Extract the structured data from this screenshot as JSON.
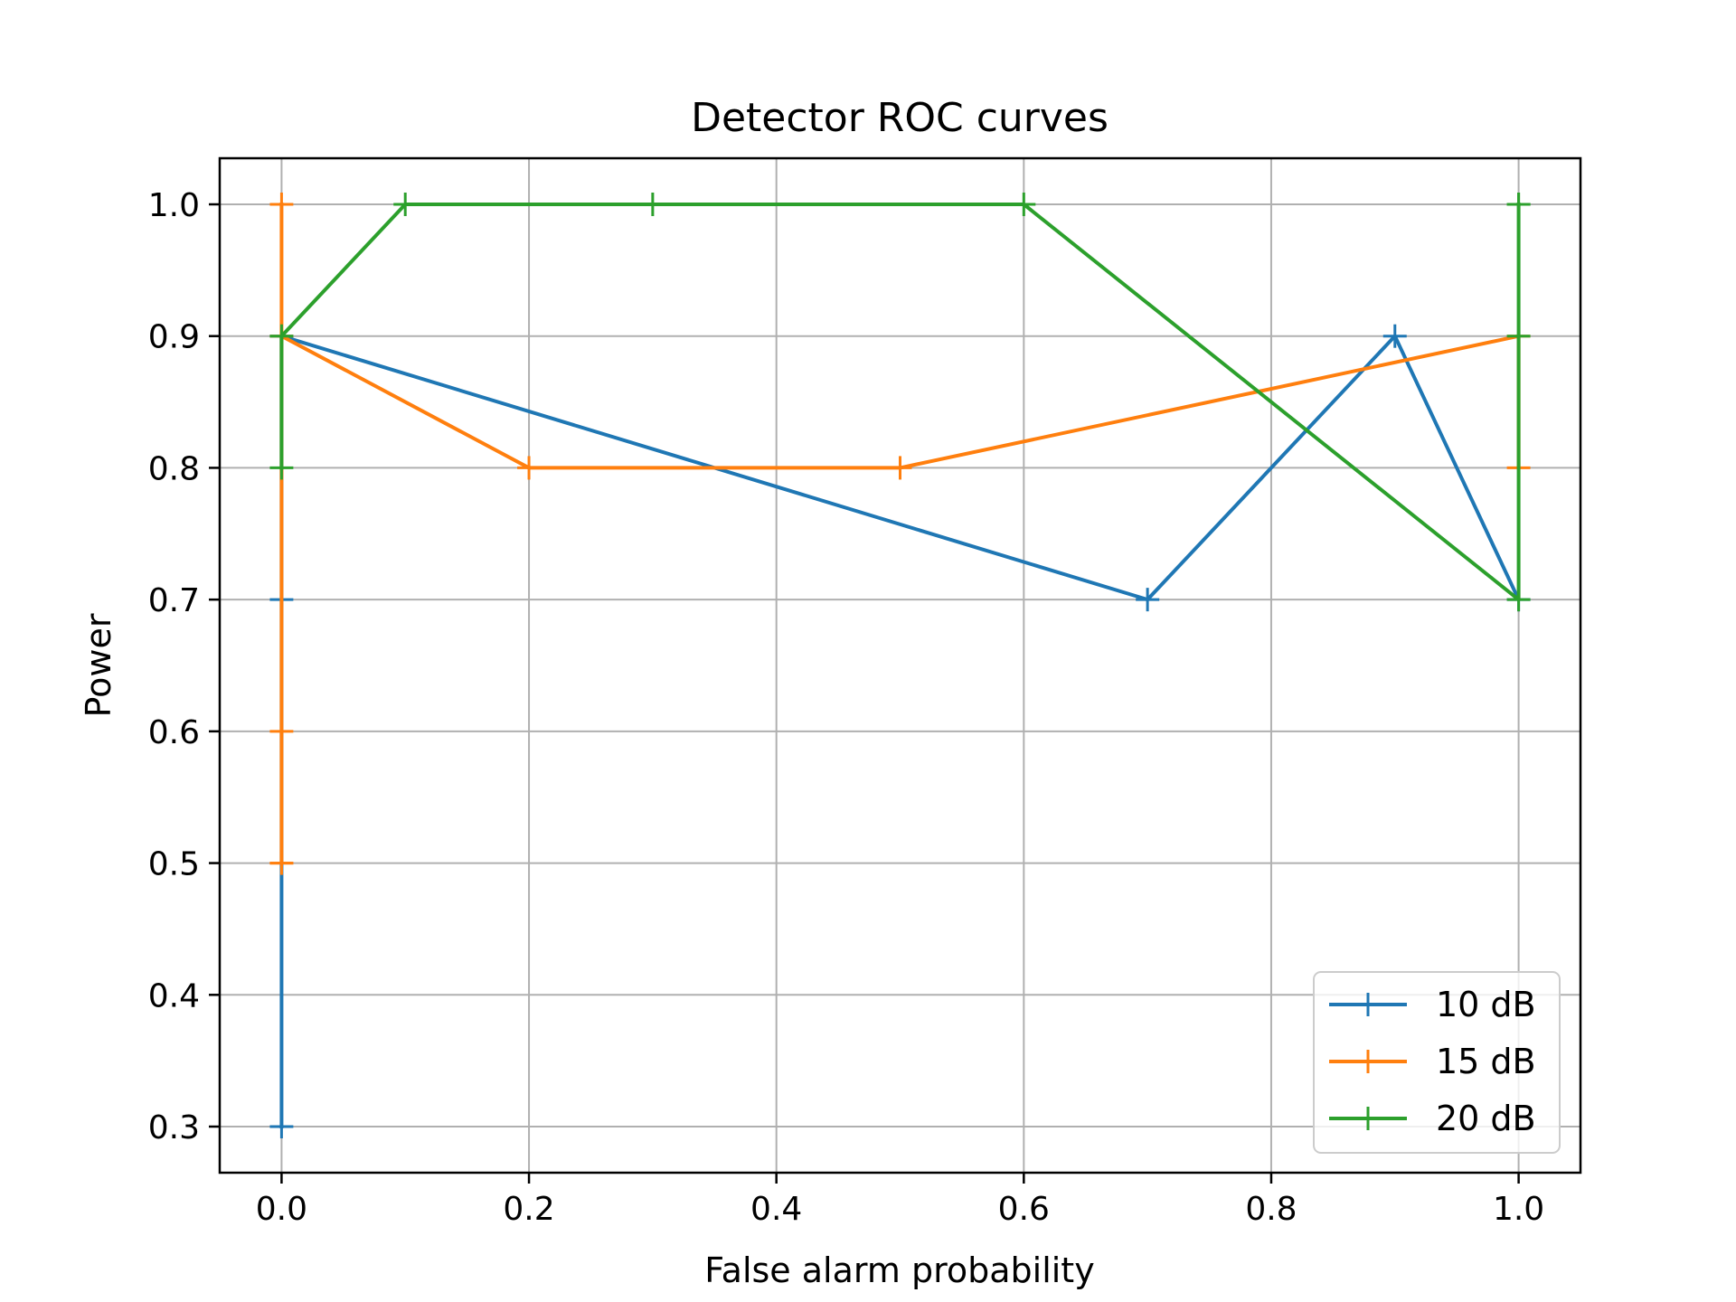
{
  "chart_data": {
    "type": "line",
    "title": "Detector ROC curves",
    "xlabel": "False alarm probability",
    "ylabel": "Power",
    "xlim": [
      -0.05,
      1.05
    ],
    "ylim": [
      0.265,
      1.035
    ],
    "xticks": [
      0.0,
      0.2,
      0.4,
      0.6,
      0.8,
      1.0
    ],
    "xtick_labels": [
      "0.0",
      "0.2",
      "0.4",
      "0.6",
      "0.8",
      "1.0"
    ],
    "yticks": [
      0.3,
      0.4,
      0.5,
      0.6,
      0.7,
      0.8,
      0.9,
      1.0
    ],
    "ytick_labels": [
      "0.3",
      "0.4",
      "0.5",
      "0.6",
      "0.7",
      "0.8",
      "0.9",
      "1.0"
    ],
    "grid": true,
    "legend_position": "lower-right",
    "marker": "plus",
    "series": [
      {
        "name": "10 dB",
        "color": "#1f77b4",
        "x": [
          0.0,
          0.0,
          0.0,
          0.7,
          0.9,
          1.0
        ],
        "y": [
          0.3,
          0.7,
          0.9,
          0.7,
          0.9,
          0.7
        ]
      },
      {
        "name": "15 dB",
        "color": "#ff7f0e",
        "x": [
          0.0,
          0.0,
          0.0,
          0.0,
          0.0,
          0.2,
          0.5,
          1.0,
          1.0
        ],
        "y": [
          1.0,
          0.5,
          0.6,
          0.5,
          0.9,
          0.8,
          0.8,
          0.9,
          0.8
        ]
      },
      {
        "name": "20 dB",
        "color": "#2ca02c",
        "x": [
          0.0,
          0.0,
          0.1,
          0.3,
          0.6,
          1.0,
          1.0,
          1.0,
          1.0
        ],
        "y": [
          0.8,
          0.9,
          1.0,
          1.0,
          1.0,
          0.7,
          1.0,
          0.9,
          1.0
        ]
      }
    ]
  }
}
